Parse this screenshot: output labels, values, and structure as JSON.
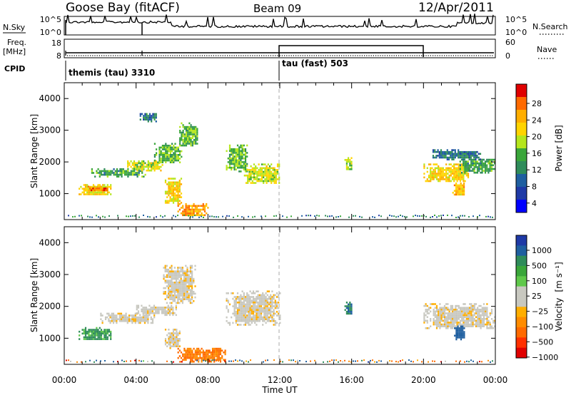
{
  "header": {
    "station": "Goose Bay (fitACF)",
    "beam": "Beam 09",
    "date": "12/Apr/2011"
  },
  "status_panels": {
    "nsky_label": "N.Sky",
    "nsky_ticks": [
      "10^5",
      "10^0"
    ],
    "nsearch_label": "N.Search",
    "nsearch_ticks": [
      "10^5",
      "10^0"
    ],
    "freq_label": "Freq.",
    "freq_unit": "[MHz]",
    "freq_ticks": [
      "18",
      "8"
    ],
    "nave_label": "Nave",
    "nave_ticks": [
      "60",
      "0"
    ],
    "cpid_label": "CPID",
    "cpid_modes": [
      {
        "name": "themis (tau) 3310",
        "start_hour": 0,
        "end_hour": 12
      },
      {
        "name": "tau (fast) 503",
        "start_hour": 12,
        "end_hour": 24
      }
    ]
  },
  "axes": {
    "ylabel": "Slant Range [km]",
    "yticks": [
      "4000",
      "3000",
      "2000",
      "1000"
    ],
    "xticks": [
      "00:00",
      "04:00",
      "08:00",
      "12:00",
      "16:00",
      "20:00",
      "00:00"
    ],
    "xlabel": "Time UT"
  },
  "power_colorbar": {
    "label": "Power [dB]",
    "ticks": [
      "28",
      "24",
      "20",
      "16",
      "12",
      "8",
      "4"
    ],
    "colors": [
      "#e00000",
      "#ff6a00",
      "#ffae00",
      "#ffd400",
      "#b5e61d",
      "#3aa63a",
      "#2f8c5a",
      "#1f5fa0",
      "#1f3aa6",
      "#0000ff"
    ]
  },
  "velocity_colorbar": {
    "label": "Velocity",
    "unit": "[m s⁻¹]",
    "ticks": [
      "1000",
      "500",
      "100",
      "25",
      "−25",
      "−100",
      "−500",
      "−1000"
    ],
    "colors": [
      "#1f3aa6",
      "#1f5fa0",
      "#2f8c5a",
      "#3aa63a",
      "#5fc84a",
      "#c8c8c0",
      "#c8c8c0",
      "#ffae00",
      "#ff8c00",
      "#ff6a00",
      "#ff3000",
      "#e00000"
    ]
  },
  "chart_data": [
    {
      "type": "heatmap",
      "title": "Power [dB]",
      "xlabel": "Time UT",
      "ylabel": "Slant Range [km]",
      "x_range_hours": [
        0,
        24
      ],
      "y_range_km": [
        180,
        4500
      ],
      "value_range": [
        0,
        30
      ],
      "regions": [
        {
          "t0": 0.8,
          "t1": 2.6,
          "r0": 950,
          "r1": 1300,
          "value": 20
        },
        {
          "t0": 1.3,
          "t1": 2.4,
          "r0": 1100,
          "r1": 1250,
          "value": 26
        },
        {
          "t0": 1.5,
          "t1": 4.5,
          "r0": 1550,
          "r1": 1800,
          "value": 12
        },
        {
          "t0": 3.5,
          "t1": 5.5,
          "r0": 1750,
          "r1": 2050,
          "value": 18
        },
        {
          "t0": 5.0,
          "t1": 6.5,
          "r0": 2000,
          "r1": 2600,
          "value": 14
        },
        {
          "t0": 6.4,
          "t1": 7.4,
          "r0": 2500,
          "r1": 3250,
          "value": 14
        },
        {
          "t0": 4.2,
          "t1": 5.2,
          "r0": 3300,
          "r1": 3600,
          "value": 8
        },
        {
          "t0": 5.6,
          "t1": 6.5,
          "r0": 700,
          "r1": 1500,
          "value": 20
        },
        {
          "t0": 6.3,
          "t1": 8.0,
          "r0": 300,
          "r1": 700,
          "value": 24
        },
        {
          "t0": 9.0,
          "t1": 10.2,
          "r0": 1700,
          "r1": 2550,
          "value": 14
        },
        {
          "t0": 10.0,
          "t1": 12.0,
          "r0": 1350,
          "r1": 1950,
          "value": 18
        },
        {
          "t0": 15.6,
          "t1": 16.0,
          "r0": 1750,
          "r1": 2150,
          "value": 16
        },
        {
          "t0": 20.0,
          "t1": 22.5,
          "r0": 1400,
          "r1": 1950,
          "value": 20
        },
        {
          "t0": 22.0,
          "t1": 24.0,
          "r0": 1650,
          "r1": 2100,
          "value": 12
        },
        {
          "t0": 21.6,
          "t1": 22.3,
          "r0": 950,
          "r1": 1350,
          "value": 22
        },
        {
          "t0": 20.5,
          "t1": 23.2,
          "r0": 2100,
          "r1": 2400,
          "value": 8
        }
      ]
    },
    {
      "type": "heatmap",
      "title": "Velocity [m s⁻¹]",
      "xlabel": "Time UT",
      "ylabel": "Slant Range [km]",
      "x_range_hours": [
        0,
        24
      ],
      "y_range_km": [
        180,
        4500
      ],
      "value_range": [
        -1000,
        1000
      ],
      "regions": [
        {
          "t0": 0.8,
          "t1": 2.6,
          "r0": 950,
          "r1": 1350,
          "value": 120
        },
        {
          "t0": 2.0,
          "t1": 5.0,
          "r0": 1500,
          "r1": 1800,
          "value": 0
        },
        {
          "t0": 4.0,
          "t1": 6.2,
          "r0": 1750,
          "r1": 2050,
          "value": 0
        },
        {
          "t0": 5.5,
          "t1": 7.3,
          "r0": 2100,
          "r1": 3300,
          "value": 0
        },
        {
          "t0": 5.6,
          "t1": 6.4,
          "r0": 700,
          "r1": 1300,
          "value": 0
        },
        {
          "t0": 6.3,
          "t1": 9.0,
          "r0": 250,
          "r1": 700,
          "value": -300
        },
        {
          "t0": 9.0,
          "t1": 12.0,
          "r0": 1400,
          "r1": 2500,
          "value": 0
        },
        {
          "t0": 15.6,
          "t1": 16.0,
          "r0": 1750,
          "r1": 2150,
          "value": 300
        },
        {
          "t0": 20.0,
          "t1": 24.0,
          "r0": 1300,
          "r1": 2100,
          "value": 0
        },
        {
          "t0": 21.7,
          "t1": 22.3,
          "r0": 950,
          "r1": 1400,
          "value": 400
        }
      ]
    }
  ]
}
